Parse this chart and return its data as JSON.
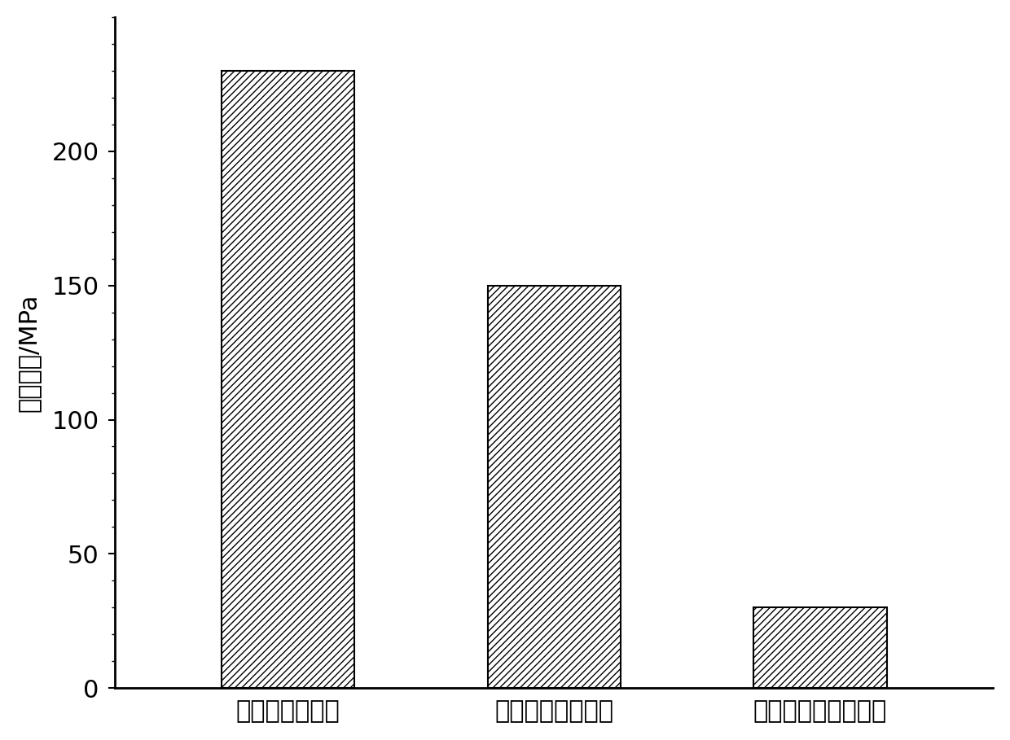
{
  "categories": [
    "无辅助激光增材",
    "电磁辅助激光增材",
    "本发明创造激光增材"
  ],
  "values": [
    230,
    150,
    30
  ],
  "ylabel": "残余应力/MPa",
  "ylim": [
    0,
    250
  ],
  "yticks": [
    0,
    50,
    100,
    150,
    200
  ],
  "bar_color": "#ffffff",
  "bar_edge_color": "#000000",
  "hatch_pattern": "////",
  "bar_width": 0.5,
  "background_color": "#ffffff",
  "tick_fontsize": 22,
  "ylabel_fontsize": 22,
  "xlabel_fontsize": 22,
  "spine_linewidth": 2.0
}
